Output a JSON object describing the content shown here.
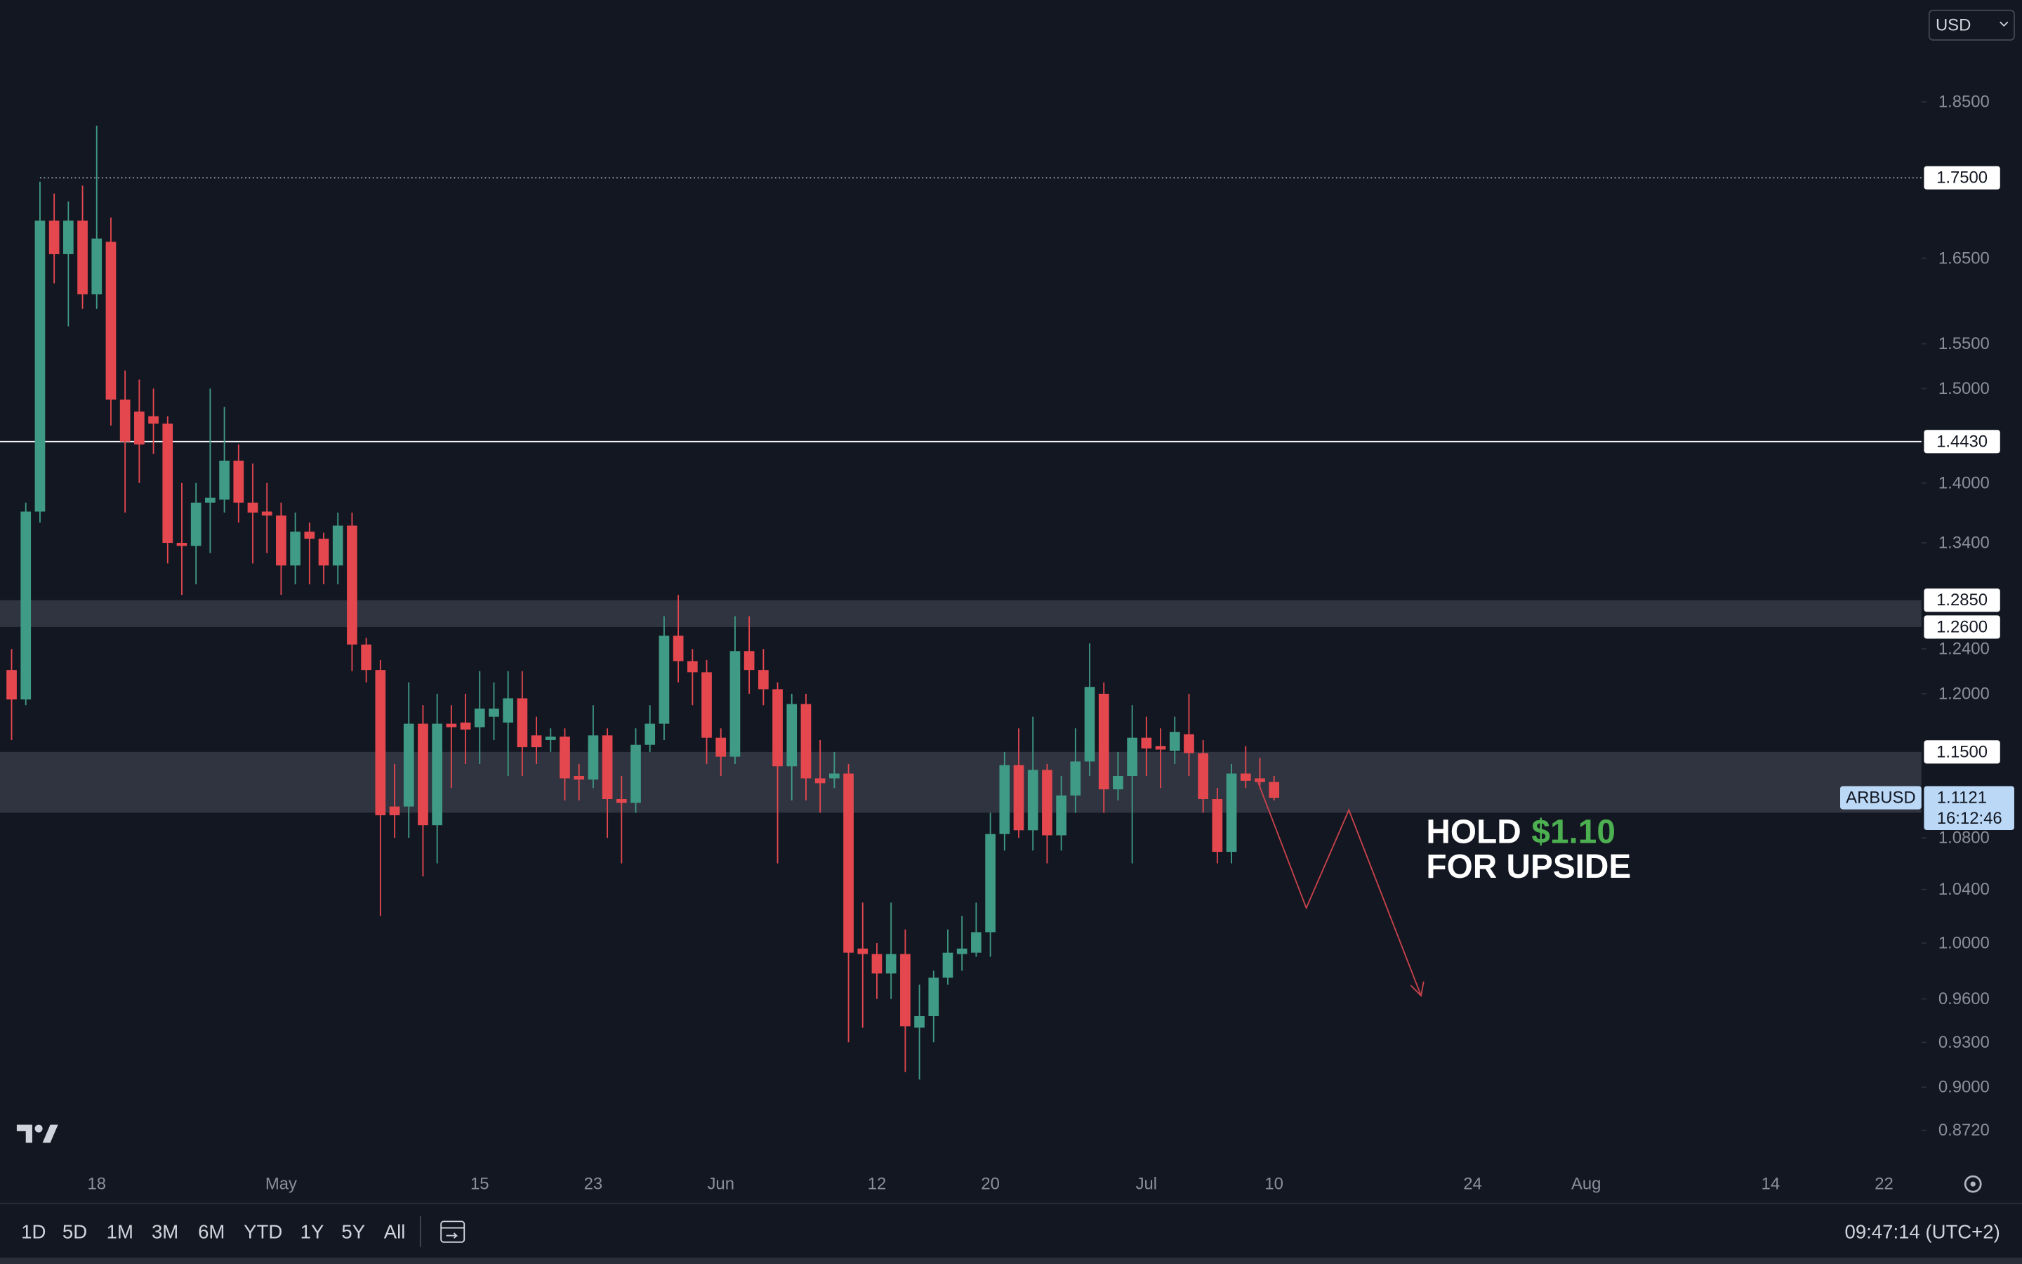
{
  "chart_data": {
    "type": "candlestick",
    "symbol": "ARBUSD",
    "currency": "USD",
    "log_scale": true,
    "up_color": "#3f9b85",
    "down_color": "#e5474f",
    "zone_color": "#363a45",
    "categories": [
      null,
      null,
      null,
      null,
      null,
      null,
      "18",
      null,
      null,
      null,
      null,
      null,
      null,
      null,
      null,
      null,
      null,
      null,
      null,
      "May",
      null,
      null,
      null,
      null,
      null,
      null,
      null,
      null,
      null,
      null,
      null,
      null,
      null,
      "15",
      null,
      null,
      null,
      null,
      null,
      null,
      null,
      "23",
      null,
      null,
      null,
      null,
      null,
      null,
      null,
      null,
      "Jun",
      null,
      null,
      null,
      null,
      null,
      null,
      null,
      null,
      null,
      null,
      "12",
      null,
      null,
      null,
      null,
      null,
      null,
      null,
      "20",
      null,
      null,
      null,
      null,
      null,
      null,
      null,
      null,
      null,
      null,
      "Jul",
      null,
      null,
      null,
      null,
      null,
      null,
      null,
      null,
      "10",
      null,
      null,
      null,
      null,
      null,
      null,
      null,
      null,
      null,
      null,
      null,
      null,
      null,
      "24",
      null,
      null,
      null,
      null,
      null,
      null,
      null,
      "Aug",
      null,
      null,
      null,
      null,
      null,
      null,
      null,
      null,
      null,
      null,
      null,
      null,
      "14",
      null,
      null,
      null,
      null,
      null,
      null,
      null,
      "22",
      null,
      null
    ],
    "open": [
      1.221,
      1.195,
      1.371,
      1.696,
      1.655,
      1.696,
      1.607,
      1.67,
      1.488,
      1.475,
      1.47,
      1.462,
      1.34,
      1.337,
      1.38,
      1.383,
      1.423,
      1.38,
      1.371,
      1.367,
      1.318,
      1.351,
      1.344,
      1.318,
      1.357,
      1.244,
      1.221,
      1.105,
      1.105,
      1.174,
      1.09,
      1.174,
      1.175,
      1.171,
      1.18,
      1.175,
      1.196,
      1.164,
      1.16,
      1.163,
      1.13,
      1.127,
      1.164,
      1.111,
      1.108,
      1.156,
      1.174,
      1.252,
      1.229,
      1.219,
      1.162,
      1.146,
      1.238,
      1.221,
      1.204,
      1.138,
      1.191,
      1.128,
      1.128,
      1.132,
      0.996,
      0.992,
      0.978,
      0.992,
      0.94,
      0.948,
      0.975,
      0.992,
      0.993,
      1.008,
      1.083,
      1.139,
      1.086,
      1.135,
      1.082,
      1.114,
      1.142,
      1.2,
      1.119,
      1.13,
      1.162,
      1.155,
      1.151,
      1.165,
      1.149,
      1.111,
      1.069,
      1.132,
      1.128,
      1.125,
      null,
      null,
      null,
      null,
      null,
      null,
      null,
      null,
      null,
      null,
      null,
      null,
      null,
      null,
      null,
      null,
      null,
      null,
      null,
      null,
      null,
      null,
      null,
      null,
      null,
      null,
      null,
      null,
      null,
      null,
      null,
      null,
      null,
      null,
      null,
      null,
      null,
      null,
      null,
      null,
      null,
      null,
      null,
      null,
      null
    ],
    "high": [
      1.24,
      1.38,
      1.745,
      1.73,
      1.72,
      1.74,
      1.818,
      1.7,
      1.52,
      1.51,
      1.5,
      1.47,
      1.4,
      1.4,
      1.5,
      1.48,
      1.44,
      1.42,
      1.4,
      1.38,
      1.37,
      1.36,
      1.35,
      1.37,
      1.37,
      1.25,
      1.23,
      1.14,
      1.21,
      1.19,
      1.2,
      1.19,
      1.2,
      1.22,
      1.21,
      1.22,
      1.22,
      1.18,
      1.17,
      1.17,
      1.14,
      1.19,
      1.17,
      1.13,
      1.17,
      1.19,
      1.27,
      1.29,
      1.24,
      1.23,
      1.17,
      1.27,
      1.27,
      1.24,
      1.21,
      1.2,
      1.2,
      1.16,
      1.15,
      1.14,
      1.03,
      1.0,
      1.03,
      1.01,
      0.97,
      0.98,
      1.01,
      1.02,
      1.03,
      1.1,
      1.15,
      1.17,
      1.18,
      1.14,
      1.13,
      1.17,
      1.245,
      1.21,
      1.15,
      1.19,
      1.18,
      1.17,
      1.18,
      1.2,
      1.16,
      1.12,
      1.14,
      1.155,
      1.145,
      1.13,
      null,
      null,
      null,
      null,
      null,
      null,
      null,
      null,
      null,
      null,
      null,
      null,
      null,
      null,
      null,
      null,
      null,
      null,
      null,
      null,
      null,
      null,
      null,
      null,
      null,
      null,
      null,
      null,
      null,
      null,
      null,
      null,
      null,
      null,
      null,
      null,
      null,
      null,
      null,
      null,
      null,
      null,
      null,
      null,
      null
    ],
    "low": [
      1.16,
      1.19,
      1.36,
      1.62,
      1.57,
      1.59,
      1.59,
      1.46,
      1.37,
      1.4,
      1.43,
      1.32,
      1.29,
      1.3,
      1.33,
      1.37,
      1.36,
      1.32,
      1.33,
      1.29,
      1.3,
      1.3,
      1.3,
      1.3,
      1.22,
      1.21,
      1.02,
      1.08,
      1.08,
      1.05,
      1.06,
      1.12,
      1.14,
      1.14,
      1.16,
      1.13,
      1.13,
      1.14,
      1.15,
      1.11,
      1.11,
      1.12,
      1.08,
      1.06,
      1.1,
      1.15,
      1.16,
      1.21,
      1.19,
      1.14,
      1.13,
      1.14,
      1.2,
      1.19,
      1.06,
      1.11,
      1.11,
      1.1,
      1.12,
      0.93,
      0.94,
      0.96,
      0.96,
      0.91,
      0.905,
      0.93,
      0.97,
      0.98,
      0.99,
      0.99,
      1.07,
      1.08,
      1.07,
      1.06,
      1.07,
      1.1,
      1.13,
      1.1,
      1.11,
      1.06,
      1.13,
      1.12,
      1.14,
      1.13,
      1.1,
      1.06,
      1.06,
      1.12,
      1.12,
      1.11,
      null,
      null,
      null,
      null,
      null,
      null,
      null,
      null,
      null,
      null,
      null,
      null,
      null,
      null,
      null,
      null,
      null,
      null,
      null,
      null,
      null,
      null,
      null,
      null,
      null,
      null,
      null,
      null,
      null,
      null,
      null,
      null,
      null,
      null,
      null,
      null,
      null,
      null,
      null,
      null,
      null,
      null,
      null,
      null,
      null
    ],
    "close": [
      1.195,
      1.371,
      1.696,
      1.655,
      1.696,
      1.607,
      1.674,
      1.488,
      1.443,
      1.44,
      1.462,
      1.34,
      1.337,
      1.38,
      1.385,
      1.423,
      1.38,
      1.37,
      1.367,
      1.318,
      1.351,
      1.344,
      1.318,
      1.357,
      1.244,
      1.221,
      1.098,
      1.098,
      1.174,
      1.09,
      1.174,
      1.171,
      1.169,
      1.187,
      1.187,
      1.196,
      1.154,
      1.154,
      1.163,
      1.128,
      1.127,
      1.164,
      1.111,
      1.108,
      1.156,
      1.174,
      1.252,
      1.229,
      1.219,
      1.162,
      1.146,
      1.238,
      1.221,
      1.204,
      1.138,
      1.191,
      1.128,
      1.124,
      1.132,
      0.993,
      0.992,
      0.978,
      0.992,
      0.941,
      0.948,
      0.975,
      0.993,
      0.996,
      1.008,
      1.083,
      1.139,
      1.086,
      1.135,
      1.082,
      1.114,
      1.142,
      1.206,
      1.119,
      1.13,
      1.162,
      1.153,
      1.152,
      1.167,
      1.149,
      1.111,
      1.069,
      1.132,
      1.126,
      1.125,
      1.1121,
      null,
      null,
      null,
      null,
      null,
      null,
      null,
      null,
      null,
      null,
      null,
      null,
      null,
      null,
      null,
      null,
      null,
      null,
      null,
      null,
      null,
      null,
      null,
      null,
      null,
      null,
      null,
      null,
      null,
      null,
      null,
      null,
      null,
      null,
      null,
      null,
      null,
      null,
      null,
      null,
      null,
      null,
      null,
      null,
      null
    ],
    "ylim": [
      0.852,
      1.993
    ],
    "yticks": [
      {
        "value": 1.85,
        "label": "1.8500"
      },
      {
        "value": 1.65,
        "label": "1.6500"
      },
      {
        "value": 1.55,
        "label": "1.5500"
      },
      {
        "value": 1.5,
        "label": "1.5000"
      },
      {
        "value": 1.4,
        "label": "1.4000"
      },
      {
        "value": 1.34,
        "label": "1.3400"
      },
      {
        "value": 1.24,
        "label": "1.2400"
      },
      {
        "value": 1.2,
        "label": "1.2000"
      },
      {
        "value": 1.08,
        "label": "1.0800"
      },
      {
        "value": 1.04,
        "label": "1.0400"
      },
      {
        "value": 1.0,
        "label": "1.0000"
      },
      {
        "value": 0.96,
        "label": "0.9600"
      },
      {
        "value": 0.93,
        "label": "0.9300"
      },
      {
        "value": 0.9,
        "label": "0.9000"
      },
      {
        "value": 0.872,
        "label": "0.8720"
      }
    ],
    "levels": [
      {
        "value": 1.75,
        "label": "1.7500",
        "style": "dotted"
      },
      {
        "value": 1.443,
        "label": "1.4430",
        "style": "solid"
      }
    ],
    "zones": [
      {
        "top": {
          "value": 1.285,
          "label": "1.2850"
        },
        "bottom": {
          "value": 1.26,
          "label": "1.2600"
        }
      },
      {
        "top": {
          "value": 1.15,
          "label": "1.1500"
        },
        "bottom": 1.1
      }
    ],
    "last_price": 1.1121,
    "countdown": "16:12:46",
    "annotation": {
      "line1": "HOLD",
      "price": "$1.10",
      "line2": "FOR UPSIDE"
    }
  },
  "toolbar": {
    "ranges": [
      "1D",
      "5D",
      "1M",
      "3M",
      "6M",
      "YTD",
      "1Y",
      "5Y",
      "All"
    ],
    "time": "09:47:14 (UTC+2)"
  }
}
